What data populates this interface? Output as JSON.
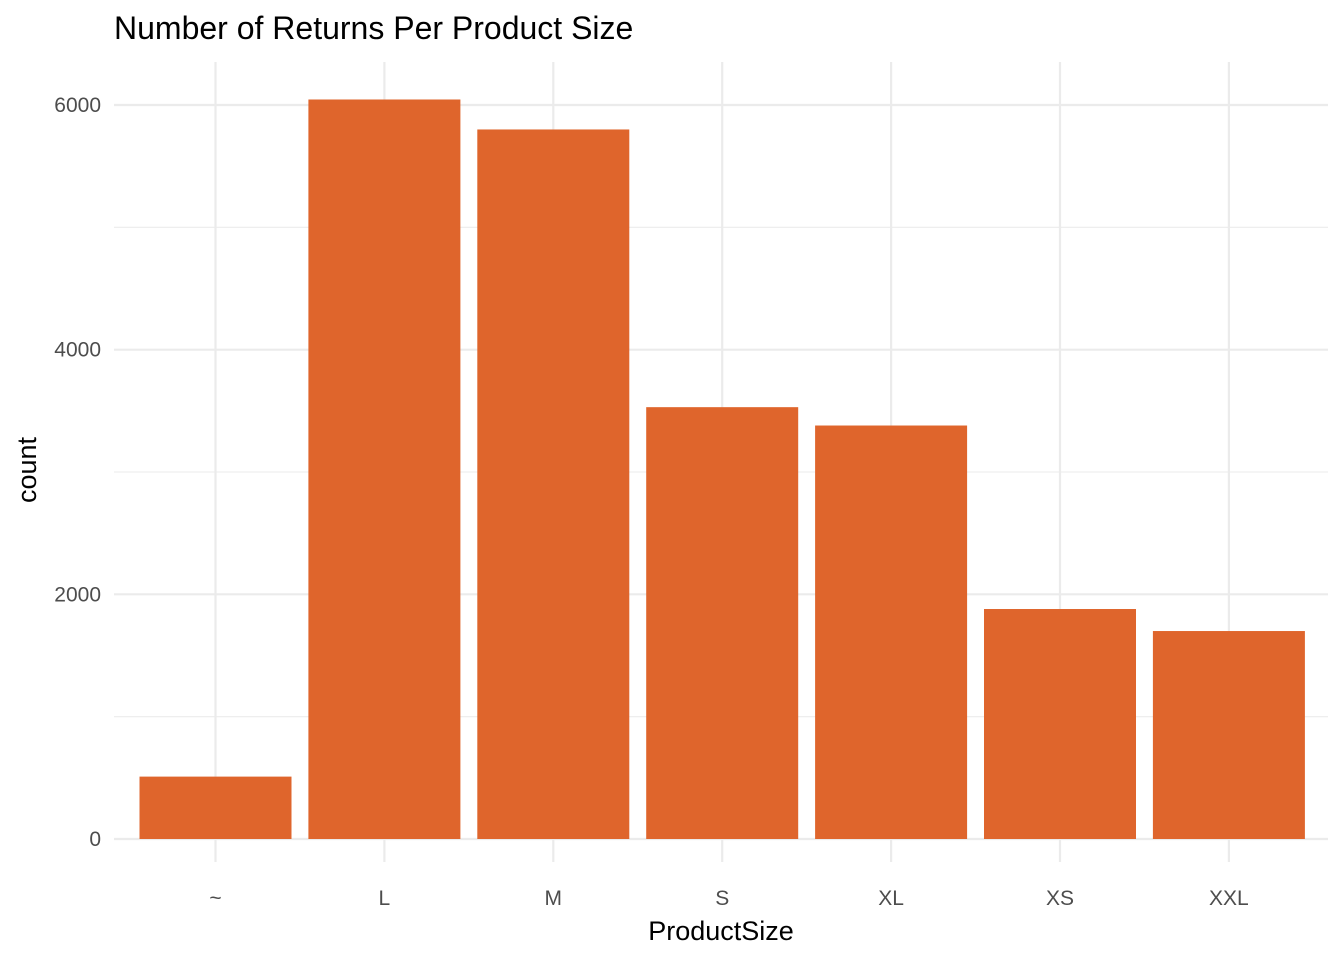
{
  "chart_data": {
    "type": "bar",
    "title": "Number of Returns Per Product Size",
    "xlabel": "ProductSize",
    "ylabel": "count",
    "categories": [
      "~",
      "L",
      "M",
      "S",
      "XL",
      "XS",
      "XXL"
    ],
    "values": [
      510,
      6045,
      5800,
      3530,
      3380,
      1880,
      1700
    ],
    "ylim": [
      0,
      6350
    ],
    "yticks": [
      0,
      2000,
      4000,
      6000
    ],
    "yticks_minor": [
      1000,
      3000,
      5000
    ],
    "grid": true,
    "legend": "none",
    "bar_color": "#DF652C"
  }
}
